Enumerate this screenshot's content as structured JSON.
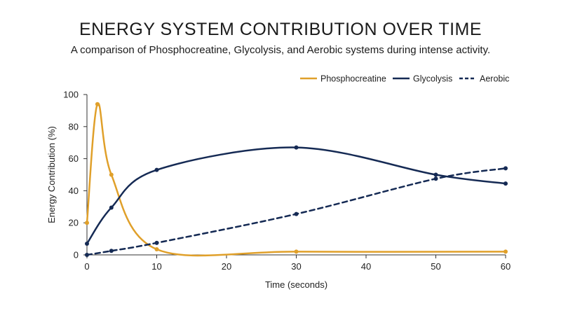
{
  "chart_data": {
    "type": "line",
    "title": "ENERGY SYSTEM CONTRIBUTION OVER TIME",
    "subtitle": "A comparison of Phosphocreatine, Glycolysis, and Aerobic systems during intense activity.",
    "xlabel": "Time (seconds)",
    "ylabel": "Energy Contribution (%)",
    "xlim": [
      0,
      60
    ],
    "ylim": [
      0,
      100
    ],
    "xticks": [
      0,
      10,
      20,
      30,
      40,
      50,
      60
    ],
    "yticks": [
      0,
      20,
      40,
      60,
      80,
      100
    ],
    "grid": false,
    "legend_position": "top-right",
    "series": [
      {
        "name": "Phosphocreatine",
        "color": "#e0a02a",
        "dash": "solid",
        "points": [
          [
            0,
            20
          ],
          [
            1.5,
            94
          ],
          [
            3.5,
            50
          ],
          [
            10,
            3.5
          ],
          [
            30,
            2
          ],
          [
            60,
            2
          ]
        ]
      },
      {
        "name": "Glycolysis",
        "color": "#152a54",
        "dash": "solid",
        "points": [
          [
            0,
            7
          ],
          [
            3.5,
            29.5
          ],
          [
            10,
            53
          ],
          [
            30,
            67
          ],
          [
            50,
            50
          ],
          [
            60,
            44.5
          ]
        ]
      },
      {
        "name": "Aerobic",
        "color": "#152a54",
        "dash": "dashed",
        "points": [
          [
            0,
            0
          ],
          [
            3.5,
            2.5
          ],
          [
            10,
            7.5
          ],
          [
            30,
            25.5
          ],
          [
            50,
            47.5
          ],
          [
            60,
            54
          ]
        ]
      }
    ]
  }
}
